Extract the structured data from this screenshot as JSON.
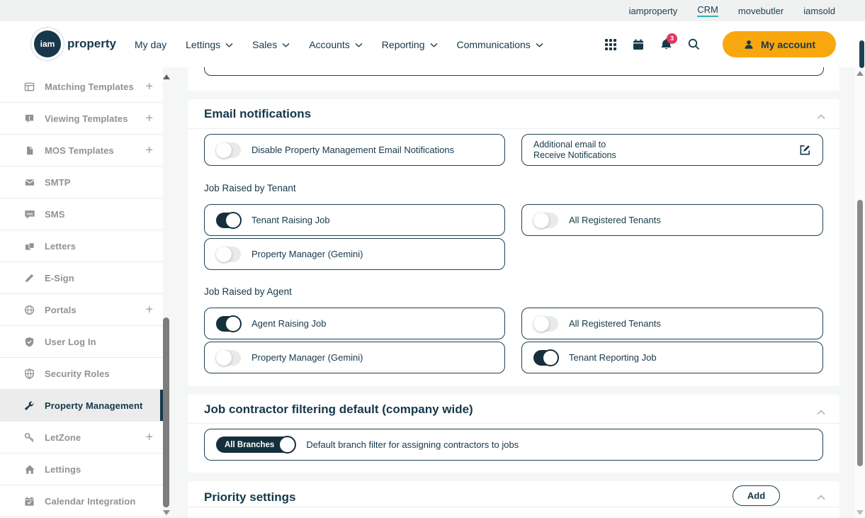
{
  "topbar": {
    "links": [
      "iamproperty",
      "CRM",
      "movebutler",
      "iamsold"
    ],
    "active_link": "CRM"
  },
  "header": {
    "logo_circle": "iam",
    "logo_word": "property",
    "nav": [
      "My day",
      "Lettings",
      "Sales",
      "Accounts",
      "Reporting",
      "Communications"
    ],
    "notification_badge": "3",
    "account_button": "My account"
  },
  "sidebar": {
    "items": [
      {
        "label": "Matching Templates",
        "icon": "matching-templates-icon",
        "expandable": true,
        "active": false
      },
      {
        "label": "Viewing Templates",
        "icon": "viewing-templates-icon",
        "expandable": true,
        "active": false
      },
      {
        "label": "MOS Templates",
        "icon": "mos-templates-icon",
        "expandable": true,
        "active": false
      },
      {
        "label": "SMTP",
        "icon": "smtp-icon",
        "expandable": false,
        "active": false
      },
      {
        "label": "SMS",
        "icon": "sms-icon",
        "expandable": false,
        "active": false
      },
      {
        "label": "Letters",
        "icon": "letters-icon",
        "expandable": false,
        "active": false
      },
      {
        "label": "E-Sign",
        "icon": "esign-icon",
        "expandable": false,
        "active": false
      },
      {
        "label": "Portals",
        "icon": "portals-icon",
        "expandable": true,
        "active": false
      },
      {
        "label": "User Log In",
        "icon": "user-login-icon",
        "expandable": false,
        "active": false
      },
      {
        "label": "Security Roles",
        "icon": "security-roles-icon",
        "expandable": false,
        "active": false
      },
      {
        "label": "Property Management",
        "icon": "property-management-icon",
        "expandable": false,
        "active": true
      },
      {
        "label": "LetZone",
        "icon": "letzone-icon",
        "expandable": true,
        "active": false
      },
      {
        "label": "Lettings",
        "icon": "lettings-icon",
        "expandable": false,
        "active": false
      },
      {
        "label": "Calendar Integration",
        "icon": "calendar-integration-icon",
        "expandable": false,
        "active": false
      }
    ]
  },
  "email_card": {
    "title": "Email notifications",
    "disable_toggle": {
      "label": "Disable Property Management Email Notifications",
      "on": false
    },
    "additional_email": {
      "line1": "Additional email to",
      "line2": "Receive Notifications"
    },
    "tenant_title": "Job Raised by Tenant",
    "tenant_toggles": [
      {
        "label": "Tenant Raising Job",
        "on": true
      },
      {
        "label": "All Registered Tenants",
        "on": false
      },
      {
        "label": "Property Manager (Gemini)",
        "on": false
      }
    ],
    "agent_title": "Job Raised by Agent",
    "agent_toggles": [
      {
        "label": "Agent Raising Job",
        "on": true
      },
      {
        "label": "All Registered Tenants",
        "on": false
      },
      {
        "label": "Property Manager (Gemini)",
        "on": false
      },
      {
        "label": "Tenant Reporting Job",
        "on": true
      }
    ]
  },
  "contractor_card": {
    "title": "Job contractor filtering default (company wide)",
    "toggle_text": "All Branches",
    "toggle_on": true,
    "description": "Default branch filter for assigning contractors to jobs"
  },
  "priority_card": {
    "title": "Priority settings",
    "add_button": "Add"
  },
  "colors": {
    "navy": "#16384a",
    "toggle_on": "#14303c",
    "orange": "#f8a70e",
    "teal_underline": "#35b3ae",
    "badge_red": "#e5345f",
    "page_bg": "#f5f6f6"
  }
}
